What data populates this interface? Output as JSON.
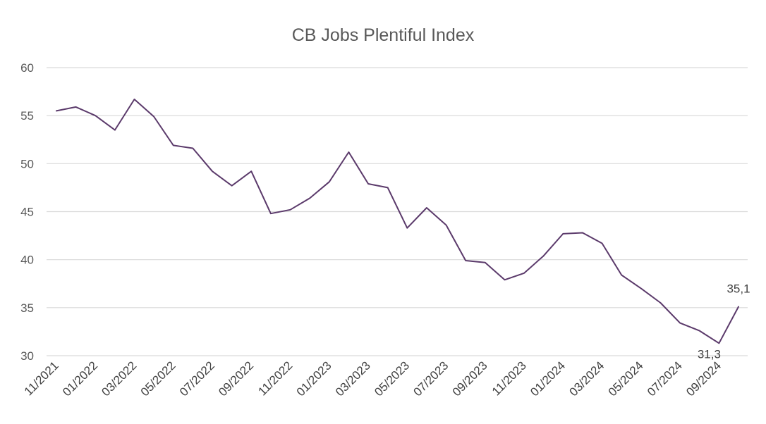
{
  "chart_data": {
    "type": "line",
    "title": "CB Jobs Plentiful Index",
    "xlabel": "",
    "ylabel": "",
    "ylim": [
      30,
      60
    ],
    "yticks": [
      "30",
      "35",
      "40",
      "45",
      "50",
      "55",
      "60"
    ],
    "grid": true,
    "x": [
      "11/2021",
      "12/2021",
      "01/2022",
      "02/2022",
      "03/2022",
      "04/2022",
      "05/2022",
      "06/2022",
      "07/2022",
      "08/2022",
      "09/2022",
      "10/2022",
      "11/2022",
      "12/2022",
      "01/2023",
      "02/2023",
      "03/2023",
      "04/2023",
      "05/2023",
      "06/2023",
      "07/2023",
      "08/2023",
      "09/2023",
      "10/2023",
      "11/2023",
      "12/2023",
      "01/2024",
      "02/2024",
      "03/2024",
      "04/2024",
      "05/2024",
      "06/2024",
      "07/2024",
      "08/2024",
      "09/2024",
      "10/2024"
    ],
    "xtick_labels": [
      "11/2021",
      "01/2022",
      "03/2022",
      "05/2022",
      "07/2022",
      "09/2022",
      "11/2022",
      "01/2023",
      "03/2023",
      "05/2023",
      "07/2023",
      "09/2023",
      "11/2023",
      "01/2024",
      "03/2024",
      "05/2024",
      "07/2024",
      "09/2024"
    ],
    "series": [
      {
        "color": "#5b3a6b",
        "values": [
          55.5,
          55.9,
          55.0,
          53.5,
          56.7,
          54.9,
          51.9,
          51.6,
          49.2,
          47.7,
          49.2,
          44.8,
          45.2,
          46.4,
          48.1,
          51.2,
          47.9,
          47.5,
          43.3,
          45.4,
          43.6,
          39.9,
          39.7,
          37.9,
          38.6,
          40.4,
          42.7,
          42.8,
          41.7,
          38.4,
          37.0,
          35.5,
          33.4,
          32.6,
          31.3,
          35.1
        ]
      }
    ],
    "data_labels": [
      {
        "index": 34,
        "text": "31,3"
      },
      {
        "index": 35,
        "text": "35,1"
      }
    ]
  }
}
